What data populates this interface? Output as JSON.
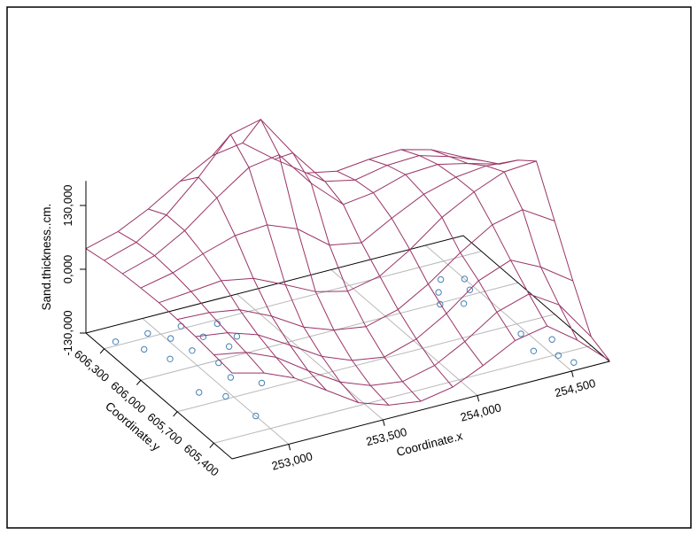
{
  "page": {
    "background": "#ffffff",
    "border_color": "#000000"
  },
  "chart_data": {
    "type": "surface3d_wireframe",
    "title": "",
    "x_axis": {
      "label": "Coordinate.x",
      "range": [
        252.7,
        254.7
      ],
      "tick_values": [
        253.0,
        253.5,
        254.0,
        254.5
      ],
      "tick_labels": [
        "253,000",
        "253,500",
        "254,000",
        "254,500"
      ]
    },
    "y_axis": {
      "label": "Coordinate.y",
      "range": [
        605.25,
        606.45
      ],
      "tick_values": [
        605.4,
        605.7,
        606.0,
        606.3
      ],
      "tick_labels": [
        "605,400",
        "605,700",
        "606,000",
        "606,300"
      ]
    },
    "z_axis": {
      "label": "Sand.thickness..cm.",
      "range": [
        -130,
        180
      ],
      "tick_values": [
        -130,
        0,
        130
      ],
      "tick_labels": [
        "-130,000",
        "0,000",
        "130,000"
      ]
    },
    "surface": {
      "x_values": [
        252.7,
        252.87,
        253.03,
        253.2,
        253.37,
        253.53,
        253.7,
        253.87,
        254.03,
        254.2,
        254.37,
        254.53,
        254.7
      ],
      "y_values": [
        605.25,
        605.4,
        605.55,
        605.7,
        605.85,
        606.0,
        606.15,
        606.3,
        606.45
      ],
      "z_grid": [
        [
          45,
          28,
          2,
          -40,
          -82,
          -103,
          -112,
          -100,
          -72,
          -38,
          -25,
          -70,
          -128
        ],
        [
          50,
          38,
          12,
          -32,
          -72,
          -95,
          -104,
          -88,
          -55,
          -12,
          8,
          -30,
          -112
        ],
        [
          55,
          46,
          26,
          -12,
          -52,
          -76,
          -86,
          -66,
          -30,
          20,
          45,
          15,
          -30
        ],
        [
          58,
          55,
          45,
          15,
          -24,
          -46,
          -56,
          -38,
          -2,
          45,
          85,
          100,
          60
        ],
        [
          60,
          66,
          72,
          60,
          30,
          0,
          -16,
          -2,
          36,
          85,
          120,
          145,
          150
        ],
        [
          58,
          72,
          95,
          115,
          120,
          96,
          46,
          34,
          68,
          100,
          118,
          125,
          120
        ],
        [
          55,
          75,
          110,
          160,
          205,
          215,
          140,
          80,
          88,
          108,
          112,
          98,
          80
        ],
        [
          50,
          70,
          110,
          170,
          240,
          255,
          170,
          95,
          82,
          95,
          98,
          80,
          55
        ],
        [
          42,
          60,
          90,
          130,
          165,
          175,
          125,
          80,
          68,
          75,
          78,
          62,
          30
        ]
      ]
    },
    "points": [
      [
        252.78,
        606.33
      ],
      [
        252.86,
        606.22
      ],
      [
        252.95,
        606.33
      ],
      [
        252.92,
        606.1
      ],
      [
        253.02,
        606.25
      ],
      [
        253.05,
        606.12
      ],
      [
        253.12,
        606.32
      ],
      [
        253.16,
        606.2
      ],
      [
        253.1,
        605.98
      ],
      [
        253.22,
        606.08
      ],
      [
        253.28,
        606.27
      ],
      [
        253.3,
        606.14
      ],
      [
        252.88,
        605.8
      ],
      [
        252.97,
        605.72
      ],
      [
        253.08,
        605.85
      ],
      [
        253.18,
        605.75
      ],
      [
        254.33,
        606.08
      ],
      [
        254.4,
        606.17
      ],
      [
        254.47,
        606.04
      ],
      [
        254.38,
        605.95
      ],
      [
        254.5,
        606.13
      ],
      [
        254.28,
        605.99
      ],
      [
        254.44,
        605.47
      ],
      [
        254.52,
        605.39
      ],
      [
        254.57,
        605.52
      ],
      [
        254.47,
        605.62
      ],
      [
        254.55,
        605.31
      ],
      [
        253.0,
        605.52
      ]
    ],
    "style": {
      "surface_color": "#993366",
      "point_color": "#4682B4",
      "grid_color": "#b8b8b8",
      "axis_color": "#000000",
      "text_color": "#000000"
    }
  }
}
